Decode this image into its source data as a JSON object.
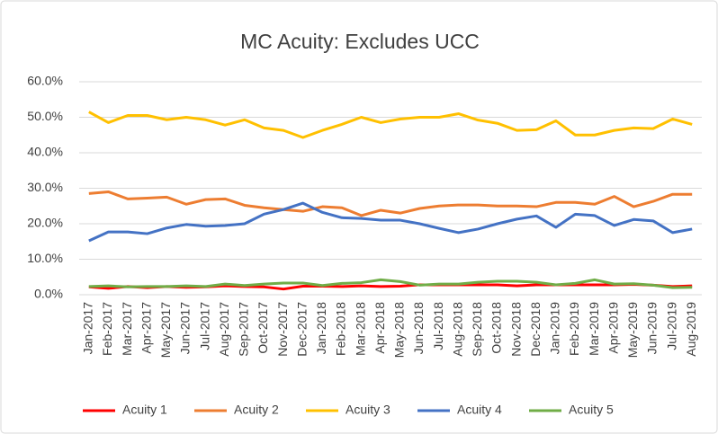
{
  "chart_data": {
    "type": "line",
    "title": "MC Acuity:  Excludes UCC",
    "categories": [
      "Jan-2017",
      "Feb-2017",
      "Mar-2017",
      "Apr-2017",
      "May-2017",
      "Jun-2017",
      "Jul-2017",
      "Aug-2017",
      "Sep-2017",
      "Oct-2017",
      "Nov-2017",
      "Dec-2017",
      "Jan-2018",
      "Feb-2018",
      "Mar-2018",
      "Apr-2018",
      "May-2018",
      "Jun-2018",
      "Jul-2018",
      "Aug-2018",
      "Sep-2018",
      "Oct-2018",
      "Nov-2018",
      "Dec-2018",
      "Jan-2019",
      "Feb-2019",
      "Mar-2019",
      "Apr-2019",
      "May-2019",
      "Jun-2019",
      "Jul-2019",
      "Aug-2019"
    ],
    "series": [
      {
        "name": "Acuity 1",
        "color": "#ff0000",
        "values": [
          2.2,
          1.8,
          2.3,
          2.0,
          2.3,
          2.1,
          2.2,
          2.5,
          2.3,
          2.2,
          1.6,
          2.4,
          2.4,
          2.3,
          2.5,
          2.3,
          2.4,
          2.8,
          2.8,
          2.8,
          2.8,
          2.8,
          2.5,
          2.8,
          2.8,
          2.8,
          2.8,
          2.8,
          2.9,
          2.7,
          2.3,
          2.5
        ]
      },
      {
        "name": "Acuity 2",
        "color": "#ed7d31",
        "values": [
          28.5,
          29.0,
          27.0,
          27.2,
          27.5,
          25.5,
          26.8,
          27.0,
          25.2,
          24.5,
          24.0,
          23.5,
          24.8,
          24.5,
          22.3,
          23.8,
          23.0,
          24.3,
          25.0,
          25.3,
          25.3,
          25.0,
          25.0,
          24.8,
          26.0,
          26.0,
          25.5,
          27.7,
          24.8,
          26.3,
          28.3,
          28.3
        ]
      },
      {
        "name": "Acuity 3",
        "color": "#ffc000",
        "values": [
          51.5,
          48.5,
          50.5,
          50.5,
          49.3,
          50.0,
          49.3,
          47.8,
          49.3,
          47.0,
          46.3,
          44.3,
          46.3,
          48.0,
          50.0,
          48.5,
          49.5,
          50.0,
          50.0,
          51.0,
          49.2,
          48.3,
          46.3,
          46.5,
          49.0,
          45.0,
          45.0,
          46.3,
          47.0,
          46.8,
          49.5,
          48.0
        ]
      },
      {
        "name": "Acuity 4",
        "color": "#4472c4",
        "values": [
          15.2,
          17.7,
          17.7,
          17.2,
          18.8,
          19.8,
          19.3,
          19.5,
          20.0,
          22.7,
          24.0,
          25.8,
          23.2,
          21.7,
          21.5,
          21.0,
          21.0,
          20.0,
          18.7,
          17.5,
          18.5,
          20.0,
          21.3,
          22.2,
          19.0,
          22.7,
          22.3,
          19.5,
          21.2,
          20.8,
          17.5,
          18.5
        ]
      },
      {
        "name": "Acuity 5",
        "color": "#70ad47",
        "values": [
          2.3,
          2.5,
          2.2,
          2.3,
          2.3,
          2.5,
          2.3,
          3.0,
          2.6,
          3.0,
          3.3,
          3.3,
          2.6,
          3.2,
          3.4,
          4.2,
          3.7,
          2.7,
          3.0,
          3.0,
          3.5,
          3.8,
          3.8,
          3.5,
          2.8,
          3.2,
          4.2,
          3.0,
          3.1,
          2.7,
          2.0,
          2.1
        ]
      }
    ],
    "ylim": [
      0,
      60
    ],
    "yticks": [
      {
        "value": 0,
        "label": "0.0%"
      },
      {
        "value": 10,
        "label": "10.0%"
      },
      {
        "value": 20,
        "label": "20.0%"
      },
      {
        "value": 30,
        "label": "30.0%"
      },
      {
        "value": 40,
        "label": "40.0%"
      },
      {
        "value": 50,
        "label": "50.0%"
      },
      {
        "value": 60,
        "label": "60.0%"
      }
    ],
    "grid": true,
    "legend": "bottom"
  }
}
